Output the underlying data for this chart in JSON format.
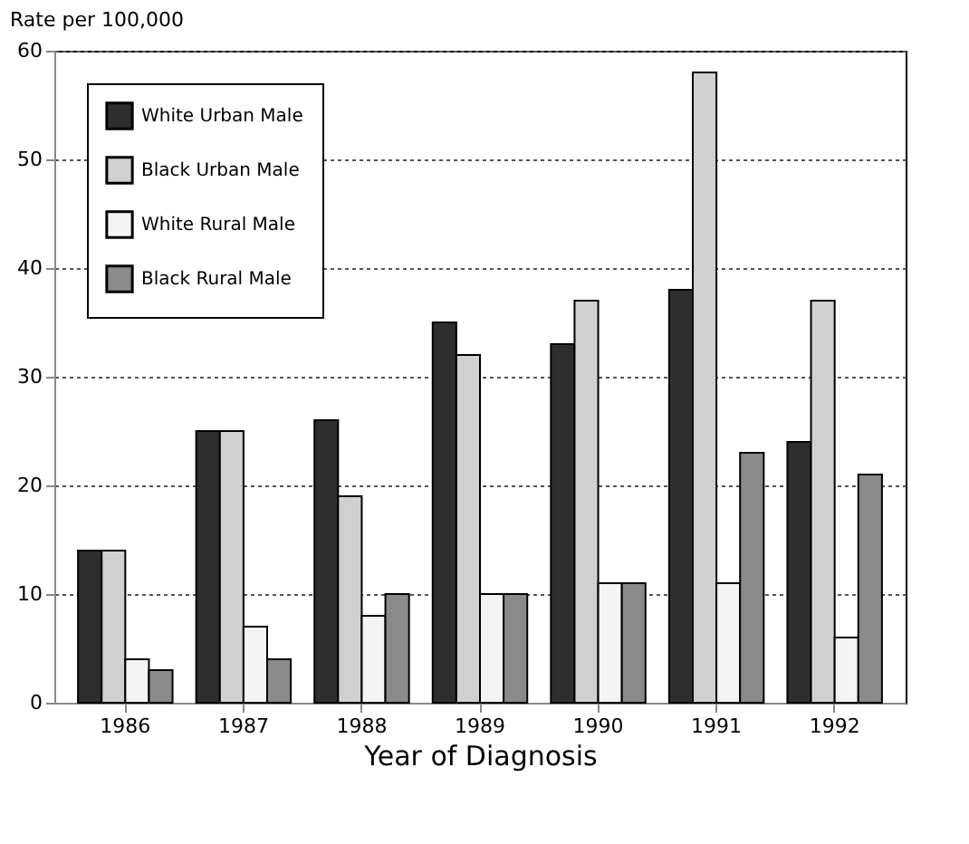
{
  "chart_data": {
    "type": "bar",
    "xlabel": "Year of Diagnosis",
    "ylabel": "Rate per 100,000",
    "categories": [
      "1986",
      "1987",
      "1988",
      "1989",
      "1990",
      "1991",
      "1992"
    ],
    "series": [
      {
        "name": "White Urban Male",
        "color": "#2e2e2e",
        "values": [
          14,
          25,
          26,
          35,
          33,
          38,
          24
        ]
      },
      {
        "name": "Black Urban Male",
        "color": "#d0d0d0",
        "values": [
          14,
          25,
          19,
          32,
          37,
          58,
          37
        ]
      },
      {
        "name": "White Rural Male",
        "color": "#f4f4f4",
        "values": [
          4,
          7,
          8,
          10,
          11,
          11,
          6
        ]
      },
      {
        "name": "Black Rural Male",
        "color": "#8a8a8a",
        "values": [
          3,
          4,
          10,
          10,
          11,
          23,
          21
        ]
      }
    ],
    "ylim": [
      0,
      60
    ],
    "yticks": [
      0,
      10,
      20,
      30,
      40,
      50,
      60
    ],
    "grid": "y",
    "legend": "top left"
  }
}
